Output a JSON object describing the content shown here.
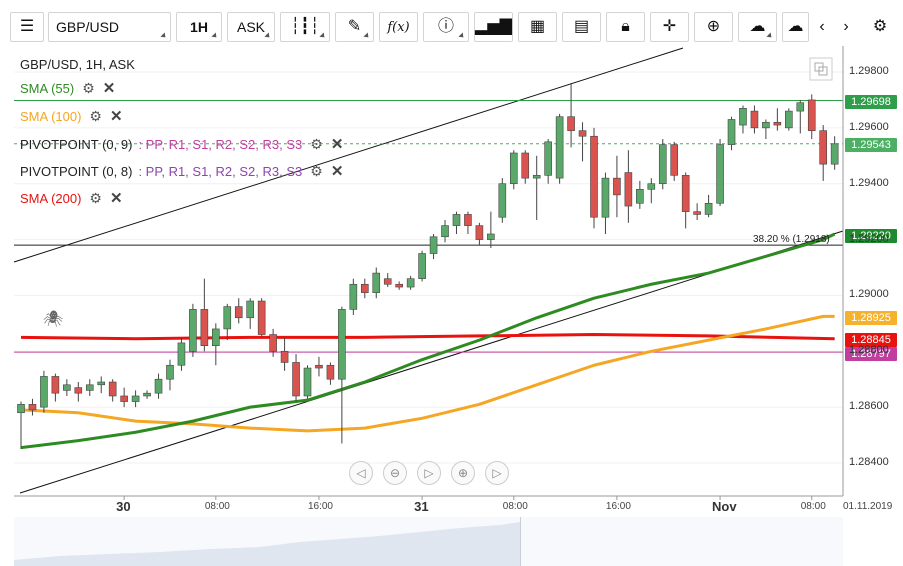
{
  "toolbar": {
    "symbol": "GBP/USD",
    "timeframe": "1H",
    "price_side": "ASK",
    "fx_label": "f(x)"
  },
  "legend": {
    "instrument": "GBP/USD, 1H, ASK",
    "sma55": "SMA (55)",
    "sma100": "SMA (100)",
    "pivot9_name": "PIVOTPOINT (0, 9)",
    "pivot9_params": ": PP, R1, S1, R2, S2, R3, S3",
    "pivot8_name": "PIVOTPOINT (0, 8)",
    "pivot8_params": ": PP, R1, S1, R2, S2, R3, S3",
    "sma200": "SMA (200)"
  },
  "fib_label": "38.20 % (1.2918)",
  "price_tags": [
    {
      "value": "1.29698",
      "color": "#2e9e4a"
    },
    {
      "value": "1.29543",
      "color": "#4caf63"
    },
    {
      "value": "1.29220",
      "color": "#1f8a2e"
    },
    {
      "value": "1.28925",
      "color": "#f5b22a"
    },
    {
      "value": "1.28845",
      "color": "#e8130f"
    },
    {
      "value": "1.28797",
      "color": "#c23da0"
    }
  ],
  "date_label": "01.11.2019",
  "colors": {
    "up": "#5aa96b",
    "down": "#d9534f",
    "sma55": "#2e8b22",
    "sma100": "#f5a623",
    "sma200": "#e8130f",
    "pivot": "#c23da0"
  },
  "chart_data": {
    "type": "candlestick",
    "title": "GBP/USD, 1H, ASK",
    "ylim": [
      1.283,
      1.299
    ],
    "y_ticks": [
      "1.28400",
      "1.28600",
      "1.28800",
      "1.29000",
      "1.29200",
      "1.29400",
      "1.29600",
      "1.29800"
    ],
    "x_ticks": [
      {
        "label": "30",
        "bold": true,
        "index": 9
      },
      {
        "label": "08:00",
        "bold": false,
        "index": 17
      },
      {
        "label": "16:00",
        "bold": false,
        "index": 26
      },
      {
        "label": "31",
        "bold": true,
        "index": 35
      },
      {
        "label": "08:00",
        "bold": false,
        "index": 43
      },
      {
        "label": "16:00",
        "bold": false,
        "index": 52
      },
      {
        "label": "Nov",
        "bold": true,
        "index": 61
      },
      {
        "label": "08:00",
        "bold": false,
        "index": 69
      }
    ],
    "candles": [
      {
        "o": 1.2858,
        "h": 1.2862,
        "l": 1.2845,
        "c": 1.2861
      },
      {
        "o": 1.2861,
        "h": 1.2863,
        "l": 1.2857,
        "c": 1.2859
      },
      {
        "o": 1.286,
        "h": 1.2873,
        "l": 1.2858,
        "c": 1.2871
      },
      {
        "o": 1.2871,
        "h": 1.2872,
        "l": 1.2862,
        "c": 1.2865
      },
      {
        "o": 1.2866,
        "h": 1.287,
        "l": 1.2864,
        "c": 1.2868
      },
      {
        "o": 1.2867,
        "h": 1.2869,
        "l": 1.2862,
        "c": 1.2865
      },
      {
        "o": 1.2866,
        "h": 1.287,
        "l": 1.2864,
        "c": 1.2868
      },
      {
        "o": 1.2868,
        "h": 1.2871,
        "l": 1.2865,
        "c": 1.2869
      },
      {
        "o": 1.2869,
        "h": 1.287,
        "l": 1.2862,
        "c": 1.2864
      },
      {
        "o": 1.2864,
        "h": 1.2867,
        "l": 1.286,
        "c": 1.2862
      },
      {
        "o": 1.2862,
        "h": 1.2866,
        "l": 1.286,
        "c": 1.2864
      },
      {
        "o": 1.2864,
        "h": 1.2866,
        "l": 1.2863,
        "c": 1.2865
      },
      {
        "o": 1.2865,
        "h": 1.2872,
        "l": 1.2863,
        "c": 1.287
      },
      {
        "o": 1.287,
        "h": 1.2877,
        "l": 1.2866,
        "c": 1.2875
      },
      {
        "o": 1.2875,
        "h": 1.2885,
        "l": 1.2873,
        "c": 1.2883
      },
      {
        "o": 1.288,
        "h": 1.2897,
        "l": 1.2878,
        "c": 1.2895
      },
      {
        "o": 1.2895,
        "h": 1.2906,
        "l": 1.288,
        "c": 1.2882
      },
      {
        "o": 1.2882,
        "h": 1.289,
        "l": 1.2875,
        "c": 1.2888
      },
      {
        "o": 1.2888,
        "h": 1.2897,
        "l": 1.2884,
        "c": 1.2896
      },
      {
        "o": 1.2896,
        "h": 1.2899,
        "l": 1.289,
        "c": 1.2892
      },
      {
        "o": 1.2892,
        "h": 1.2899,
        "l": 1.2888,
        "c": 1.2898
      },
      {
        "o": 1.2898,
        "h": 1.2899,
        "l": 1.2885,
        "c": 1.2886
      },
      {
        "o": 1.2886,
        "h": 1.2888,
        "l": 1.2878,
        "c": 1.288
      },
      {
        "o": 1.288,
        "h": 1.2885,
        "l": 1.2873,
        "c": 1.2876
      },
      {
        "o": 1.2876,
        "h": 1.2879,
        "l": 1.2862,
        "c": 1.2864
      },
      {
        "o": 1.2864,
        "h": 1.2875,
        "l": 1.2863,
        "c": 1.2874
      },
      {
        "o": 1.2875,
        "h": 1.2878,
        "l": 1.2871,
        "c": 1.2874
      },
      {
        "o": 1.2875,
        "h": 1.2876,
        "l": 1.2868,
        "c": 1.287
      },
      {
        "o": 1.287,
        "h": 1.2896,
        "l": 1.2847,
        "c": 1.2895
      },
      {
        "o": 1.2895,
        "h": 1.2906,
        "l": 1.2893,
        "c": 1.2904
      },
      {
        "o": 1.2904,
        "h": 1.2906,
        "l": 1.2899,
        "c": 1.2901
      },
      {
        "o": 1.2901,
        "h": 1.291,
        "l": 1.2899,
        "c": 1.2908
      },
      {
        "o": 1.2906,
        "h": 1.2908,
        "l": 1.2903,
        "c": 1.2904
      },
      {
        "o": 1.2904,
        "h": 1.2905,
        "l": 1.2902,
        "c": 1.2903
      },
      {
        "o": 1.2903,
        "h": 1.2907,
        "l": 1.2902,
        "c": 1.2906
      },
      {
        "o": 1.2906,
        "h": 1.2916,
        "l": 1.2905,
        "c": 1.2915
      },
      {
        "o": 1.2915,
        "h": 1.2922,
        "l": 1.2913,
        "c": 1.2921
      },
      {
        "o": 1.2921,
        "h": 1.2927,
        "l": 1.2919,
        "c": 1.2925
      },
      {
        "o": 1.2925,
        "h": 1.293,
        "l": 1.2922,
        "c": 1.2929
      },
      {
        "o": 1.2929,
        "h": 1.293,
        "l": 1.2922,
        "c": 1.2925
      },
      {
        "o": 1.2925,
        "h": 1.2926,
        "l": 1.2918,
        "c": 1.292
      },
      {
        "o": 1.292,
        "h": 1.293,
        "l": 1.2917,
        "c": 1.2922
      },
      {
        "o": 1.2928,
        "h": 1.2942,
        "l": 1.2926,
        "c": 1.294
      },
      {
        "o": 1.294,
        "h": 1.2952,
        "l": 1.2938,
        "c": 1.2951
      },
      {
        "o": 1.2951,
        "h": 1.2952,
        "l": 1.294,
        "c": 1.2942
      },
      {
        "o": 1.2942,
        "h": 1.295,
        "l": 1.2927,
        "c": 1.2943
      },
      {
        "o": 1.2943,
        "h": 1.2956,
        "l": 1.294,
        "c": 1.2955
      },
      {
        "o": 1.2942,
        "h": 1.2965,
        "l": 1.294,
        "c": 1.2964
      },
      {
        "o": 1.2964,
        "h": 1.2976,
        "l": 1.2953,
        "c": 1.2959
      },
      {
        "o": 1.2959,
        "h": 1.2962,
        "l": 1.2948,
        "c": 1.2957
      },
      {
        "o": 1.2957,
        "h": 1.296,
        "l": 1.2924,
        "c": 1.2928
      },
      {
        "o": 1.2928,
        "h": 1.2944,
        "l": 1.2922,
        "c": 1.2942
      },
      {
        "o": 1.2942,
        "h": 1.295,
        "l": 1.2928,
        "c": 1.2936
      },
      {
        "o": 1.2944,
        "h": 1.2952,
        "l": 1.2926,
        "c": 1.2932
      },
      {
        "o": 1.2933,
        "h": 1.2941,
        "l": 1.2931,
        "c": 1.2938
      },
      {
        "o": 1.2938,
        "h": 1.2942,
        "l": 1.2933,
        "c": 1.294
      },
      {
        "o": 1.294,
        "h": 1.2956,
        "l": 1.2938,
        "c": 1.2954
      },
      {
        "o": 1.2954,
        "h": 1.2955,
        "l": 1.2941,
        "c": 1.2943
      },
      {
        "o": 1.2943,
        "h": 1.2944,
        "l": 1.2924,
        "c": 1.293
      },
      {
        "o": 1.293,
        "h": 1.2933,
        "l": 1.2927,
        "c": 1.2929
      },
      {
        "o": 1.2929,
        "h": 1.2936,
        "l": 1.2928,
        "c": 1.2933
      },
      {
        "o": 1.2933,
        "h": 1.2956,
        "l": 1.2932,
        "c": 1.2954
      },
      {
        "o": 1.2954,
        "h": 1.2964,
        "l": 1.2952,
        "c": 1.2963
      },
      {
        "o": 1.2961,
        "h": 1.2968,
        "l": 1.2958,
        "c": 1.2967
      },
      {
        "o": 1.2966,
        "h": 1.2968,
        "l": 1.2958,
        "c": 1.296
      },
      {
        "o": 1.296,
        "h": 1.2963,
        "l": 1.2956,
        "c": 1.2962
      },
      {
        "o": 1.2962,
        "h": 1.2967,
        "l": 1.2959,
        "c": 1.2961
      },
      {
        "o": 1.296,
        "h": 1.2967,
        "l": 1.2959,
        "c": 1.2966
      },
      {
        "o": 1.2966,
        "h": 1.297,
        "l": 1.2958,
        "c": 1.2969
      },
      {
        "o": 1.297,
        "h": 1.2972,
        "l": 1.2956,
        "c": 1.2959
      },
      {
        "o": 1.2959,
        "h": 1.2961,
        "l": 1.2941,
        "c": 1.2947
      },
      {
        "o": 1.2947,
        "h": 1.2957,
        "l": 1.2945,
        "c": 1.29543
      }
    ],
    "sma55": [
      [
        0,
        1.28455
      ],
      [
        5,
        1.2848
      ],
      [
        10,
        1.2851
      ],
      [
        15,
        1.2855
      ],
      [
        20,
        1.286
      ],
      [
        25,
        1.28625
      ],
      [
        30,
        1.2869
      ],
      [
        35,
        1.2877
      ],
      [
        40,
        1.2884
      ],
      [
        45,
        1.2892
      ],
      [
        50,
        1.2899
      ],
      [
        55,
        1.2904
      ],
      [
        60,
        1.2908
      ],
      [
        65,
        1.2914
      ],
      [
        70,
        1.292
      ],
      [
        71,
        1.2922
      ]
    ],
    "sma100": [
      [
        0,
        1.2859
      ],
      [
        5,
        1.2858
      ],
      [
        10,
        1.2855
      ],
      [
        15,
        1.2854
      ],
      [
        20,
        1.28525
      ],
      [
        25,
        1.28515
      ],
      [
        30,
        1.28525
      ],
      [
        35,
        1.2856
      ],
      [
        40,
        1.2861
      ],
      [
        45,
        1.2868
      ],
      [
        50,
        1.2875
      ],
      [
        55,
        1.288
      ],
      [
        60,
        1.2884
      ],
      [
        65,
        1.2888
      ],
      [
        70,
        1.28925
      ],
      [
        71,
        1.28925
      ]
    ],
    "sma200": [
      [
        0,
        1.2885
      ],
      [
        10,
        1.28845
      ],
      [
        20,
        1.2885
      ],
      [
        30,
        1.2885
      ],
      [
        40,
        1.28855
      ],
      [
        50,
        1.2886
      ],
      [
        60,
        1.28855
      ],
      [
        71,
        1.28845
      ]
    ],
    "hlines": [
      {
        "value": 1.29698,
        "color": "#2e9e4a",
        "style": "solid"
      },
      {
        "value": 1.29543,
        "color": "#4caf63",
        "style": "dashed"
      },
      {
        "value": 1.2918,
        "color": "#222222",
        "style": "solid"
      },
      {
        "value": 1.28797,
        "color": "#c23da0",
        "style": "solid"
      }
    ]
  }
}
